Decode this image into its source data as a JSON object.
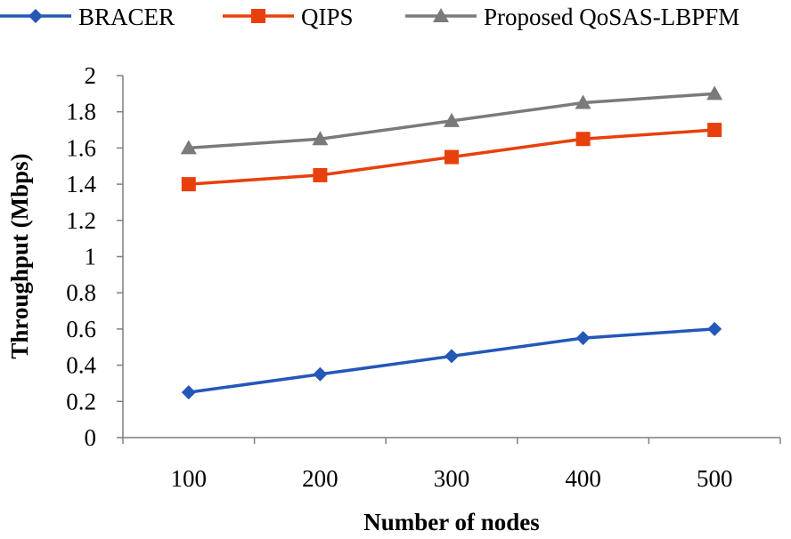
{
  "chart_data": {
    "type": "line",
    "title": "",
    "xlabel": "Number of nodes",
    "ylabel": "Throughput (Mbps)",
    "categories": [
      "100",
      "200",
      "300",
      "400",
      "500"
    ],
    "ylim": [
      0,
      2
    ],
    "yticks": [
      "0",
      "0.2",
      "0.4",
      "0.6",
      "0.8",
      "1",
      "1.2",
      "1.4",
      "1.6",
      "1.8",
      "2"
    ],
    "grid": false,
    "legend_position": "top",
    "series": [
      {
        "name": "BRACER",
        "values": [
          0.25,
          0.35,
          0.45,
          0.55,
          0.6
        ],
        "color": "#2457b8",
        "marker": "diamond"
      },
      {
        "name": "QIPS",
        "values": [
          1.4,
          1.45,
          1.55,
          1.65,
          1.7
        ],
        "color": "#e8400c",
        "marker": "square"
      },
      {
        "name": "Proposed QoSAS-LBPFM",
        "values": [
          1.6,
          1.65,
          1.75,
          1.85,
          1.9
        ],
        "color": "#7a7a7a",
        "marker": "triangle"
      }
    ]
  }
}
